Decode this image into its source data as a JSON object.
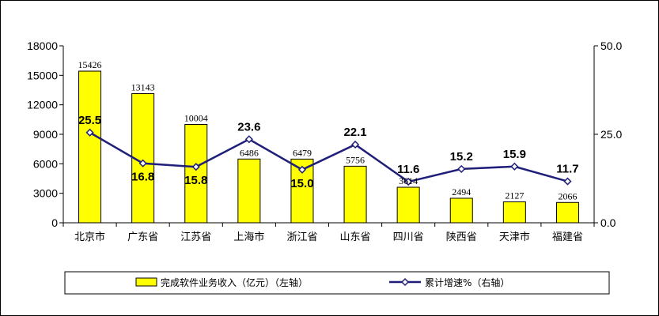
{
  "chart_data": {
    "type": "bar",
    "categories": [
      "北京市",
      "广东省",
      "江苏省",
      "上海市",
      "浙江省",
      "山东省",
      "四川省",
      "陕西省",
      "天津市",
      "福建省"
    ],
    "series": [
      {
        "name": "完成软件业务收入（亿元）（左轴）",
        "type": "bar",
        "axis": "left",
        "color": "#FFFF00",
        "values": [
          15426,
          13143,
          10004,
          6486,
          6479,
          5756,
          3614,
          2494,
          2127,
          2066
        ]
      },
      {
        "name": "累计增速%（右轴）",
        "type": "line",
        "axis": "right",
        "color": "#1F1F7A",
        "values": [
          25.5,
          16.8,
          15.8,
          23.6,
          15.0,
          22.1,
          11.6,
          15.2,
          15.9,
          11.7
        ]
      }
    ],
    "bar_labels": [
      "15426",
      "13143",
      "10004",
      "6486",
      "6479",
      "5756",
      "3614",
      "2494",
      "2127",
      "2066"
    ],
    "line_labels": [
      "25.5",
      "16.8",
      "15.8",
      "23.6",
      "15.0",
      "22.1",
      "11.6",
      "15.2",
      "15.9",
      "11.7"
    ],
    "y_left": {
      "range": [
        0,
        18000
      ],
      "ticks": [
        "0",
        "3000",
        "6000",
        "9000",
        "12000",
        "15000",
        "18000"
      ]
    },
    "y_right": {
      "range": [
        0,
        50
      ],
      "ticks": [
        "0.0",
        "25.0",
        "50.0"
      ]
    },
    "grid": false,
    "legend_position": "bottom"
  }
}
